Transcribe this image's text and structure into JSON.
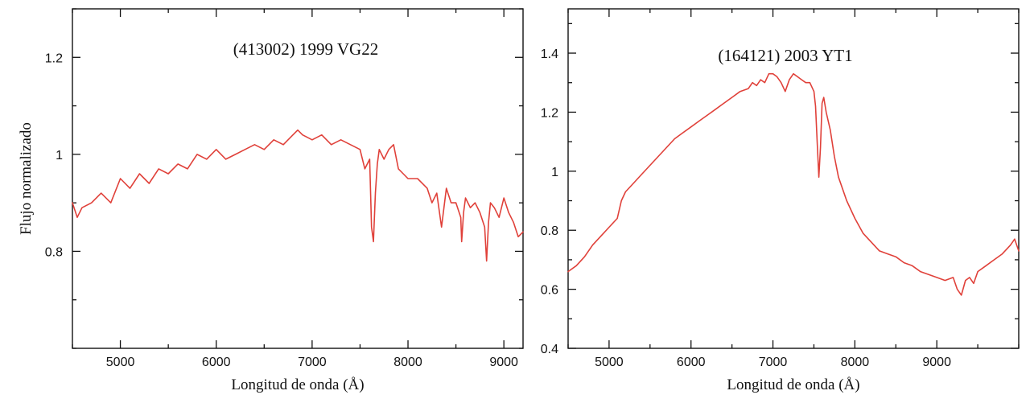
{
  "chart_data": [
    {
      "type": "line",
      "title": "(413002) 1999 VG22",
      "xlabel": "Longitud de onda (Å)",
      "ylabel": "Flujo normalizado",
      "xlim": [
        4500,
        9200
      ],
      "ylim": [
        0.6,
        1.3
      ],
      "xticks": [
        5000,
        6000,
        7000,
        8000,
        9000
      ],
      "xtick_labels": [
        "5000",
        "6000",
        "7000",
        "8000",
        "9000"
      ],
      "xminor_step": 500,
      "yticks": [
        0.8,
        1.0,
        1.2
      ],
      "ytick_labels": [
        "0.8",
        "1",
        "1.2"
      ],
      "yminor_step": 0.1,
      "grid": false,
      "color": "#e0413a",
      "series": [
        {
          "x": [
            4500,
            4550,
            4600,
            4700,
            4800,
            4900,
            5000,
            5100,
            5200,
            5300,
            5400,
            5500,
            5600,
            5700,
            5800,
            5900,
            6000,
            6100,
            6200,
            6300,
            6400,
            6500,
            6600,
            6700,
            6800,
            6850,
            6900,
            7000,
            7100,
            7200,
            7300,
            7400,
            7500,
            7550,
            7600,
            7620,
            7640,
            7660,
            7680,
            7700,
            7750,
            7800,
            7850,
            7900,
            7950,
            8000,
            8100,
            8200,
            8250,
            8300,
            8350,
            8400,
            8450,
            8500,
            8550,
            8560,
            8580,
            8600,
            8650,
            8700,
            8750,
            8800,
            8820,
            8840,
            8860,
            8900,
            8950,
            9000,
            9050,
            9100,
            9150,
            9200
          ],
          "y": [
            0.9,
            0.87,
            0.89,
            0.9,
            0.92,
            0.9,
            0.95,
            0.93,
            0.96,
            0.94,
            0.97,
            0.96,
            0.98,
            0.97,
            1.0,
            0.99,
            1.01,
            0.99,
            1.0,
            1.01,
            1.02,
            1.01,
            1.03,
            1.02,
            1.04,
            1.05,
            1.04,
            1.03,
            1.04,
            1.02,
            1.03,
            1.02,
            1.01,
            0.97,
            0.99,
            0.85,
            0.82,
            0.92,
            0.98,
            1.01,
            0.99,
            1.01,
            1.02,
            0.97,
            0.96,
            0.95,
            0.95,
            0.93,
            0.9,
            0.92,
            0.85,
            0.93,
            0.9,
            0.9,
            0.87,
            0.82,
            0.88,
            0.91,
            0.89,
            0.9,
            0.88,
            0.85,
            0.78,
            0.86,
            0.9,
            0.89,
            0.87,
            0.91,
            0.88,
            0.86,
            0.83,
            0.84
          ]
        }
      ]
    },
    {
      "type": "line",
      "title": "(164121) 2003 YT1",
      "xlabel": "Longitud de onda (Å)",
      "ylabel": "",
      "xlim": [
        4500,
        10000
      ],
      "ylim": [
        0.4,
        1.55
      ],
      "xticks": [
        5000,
        6000,
        7000,
        8000,
        9000
      ],
      "xtick_labels": [
        "5000",
        "6000",
        "7000",
        "8000",
        "9000"
      ],
      "xminor_step": 500,
      "yticks": [
        0.4,
        0.6,
        0.8,
        1.0,
        1.2,
        1.4
      ],
      "ytick_labels": [
        "0.4",
        "0.6",
        "0.8",
        "1",
        "1.2",
        "1.4"
      ],
      "yminor_step": 0.1,
      "grid": false,
      "color": "#e0413a",
      "series": [
        {
          "x": [
            4500,
            4600,
            4700,
            4800,
            4900,
            5000,
            5100,
            5150,
            5200,
            5300,
            5400,
            5500,
            5600,
            5700,
            5800,
            5900,
            6000,
            6100,
            6200,
            6300,
            6400,
            6500,
            6600,
            6700,
            6750,
            6800,
            6850,
            6900,
            6950,
            7000,
            7050,
            7100,
            7150,
            7200,
            7250,
            7300,
            7350,
            7400,
            7450,
            7500,
            7520,
            7540,
            7560,
            7580,
            7600,
            7620,
            7650,
            7700,
            7750,
            7800,
            7900,
            8000,
            8100,
            8200,
            8300,
            8400,
            8500,
            8600,
            8700,
            8800,
            8900,
            9000,
            9100,
            9200,
            9250,
            9300,
            9350,
            9400,
            9450,
            9500,
            9600,
            9700,
            9800,
            9900,
            9950,
            10000
          ],
          "y": [
            0.66,
            0.68,
            0.71,
            0.75,
            0.78,
            0.81,
            0.84,
            0.9,
            0.93,
            0.96,
            0.99,
            1.02,
            1.05,
            1.08,
            1.11,
            1.13,
            1.15,
            1.17,
            1.19,
            1.21,
            1.23,
            1.25,
            1.27,
            1.28,
            1.3,
            1.29,
            1.31,
            1.3,
            1.33,
            1.33,
            1.32,
            1.3,
            1.27,
            1.31,
            1.33,
            1.32,
            1.31,
            1.3,
            1.3,
            1.27,
            1.22,
            1.1,
            0.98,
            1.08,
            1.23,
            1.25,
            1.2,
            1.14,
            1.05,
            0.98,
            0.9,
            0.84,
            0.79,
            0.76,
            0.73,
            0.72,
            0.71,
            0.69,
            0.68,
            0.66,
            0.65,
            0.64,
            0.63,
            0.64,
            0.6,
            0.58,
            0.63,
            0.64,
            0.62,
            0.66,
            0.68,
            0.7,
            0.72,
            0.75,
            0.77,
            0.73
          ]
        }
      ]
    }
  ]
}
